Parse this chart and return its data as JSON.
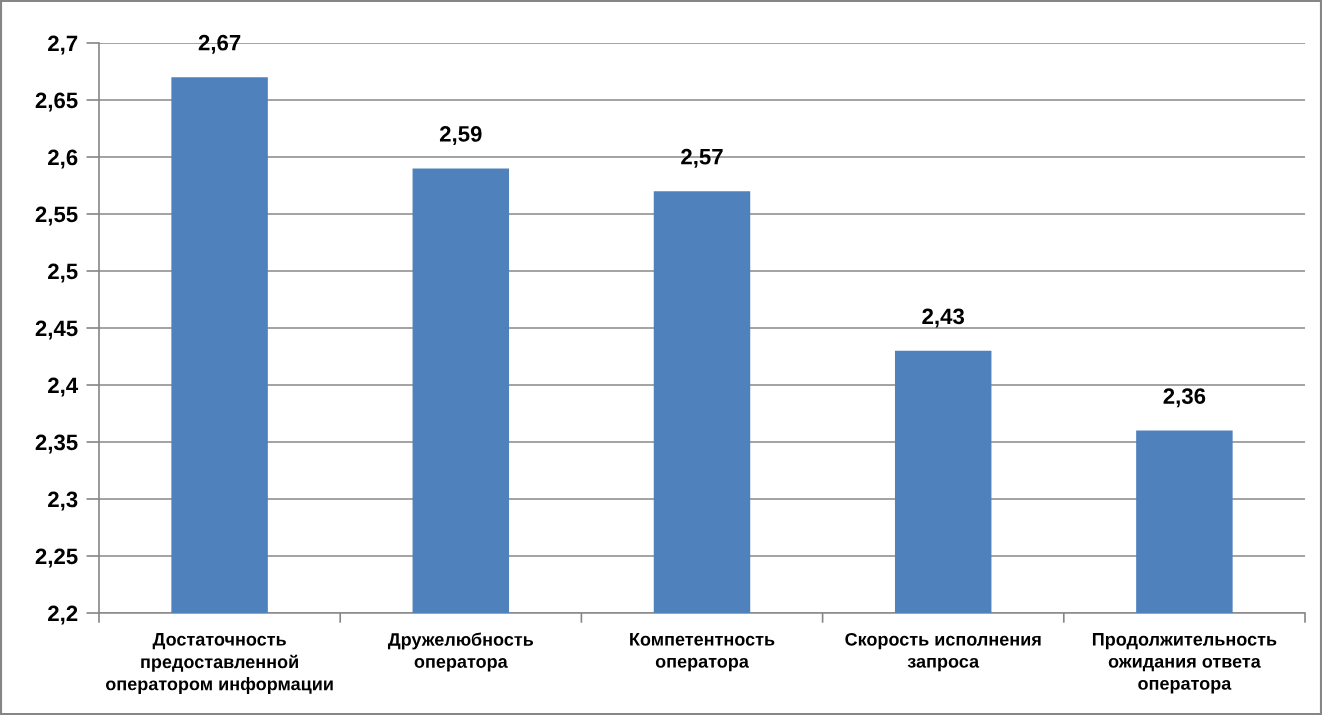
{
  "chart_data": {
    "type": "bar",
    "categories": [
      "Достаточность\nпредоставленной\nоператором информации",
      "Дружелюбность\nоператора",
      "Компетентность\nоператора",
      "Скорость исполнения\nзапроса",
      "Продолжительность\nожидания ответа\nоператора"
    ],
    "values": [
      2.67,
      2.59,
      2.57,
      2.43,
      2.36
    ],
    "value_labels": [
      "2,67",
      "2,59",
      "2,57",
      "2,43",
      "2,36"
    ],
    "color": "#4f81bd",
    "ylim": [
      2.2,
      2.7
    ],
    "yticks": [
      {
        "value": 2.2,
        "label": "2,2"
      },
      {
        "value": 2.25,
        "label": "2,25"
      },
      {
        "value": 2.3,
        "label": "2,3"
      },
      {
        "value": 2.35,
        "label": "2,35"
      },
      {
        "value": 2.4,
        "label": "2,4"
      },
      {
        "value": 2.45,
        "label": "2,45"
      },
      {
        "value": 2.5,
        "label": "2,5"
      },
      {
        "value": 2.55,
        "label": "2,55"
      },
      {
        "value": 2.6,
        "label": "2,6"
      },
      {
        "value": 2.65,
        "label": "2,65"
      },
      {
        "value": 2.7,
        "label": "2,7"
      }
    ],
    "grid": "y"
  }
}
